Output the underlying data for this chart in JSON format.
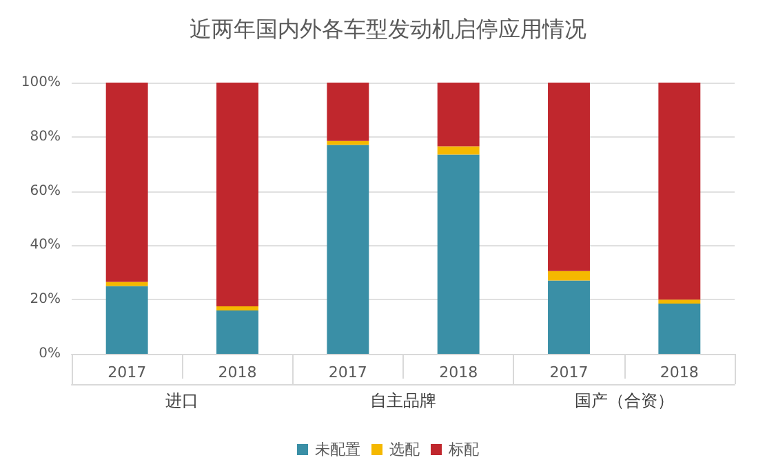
{
  "chart_data": {
    "type": "bar",
    "title": "近两年国内外各车型发动机启停应用情况",
    "stacked": true,
    "categories": [
      "2017",
      "2018",
      "2017",
      "2018",
      "2017",
      "2018"
    ],
    "annotations": [
      "进口",
      "自主品牌",
      "国产（合资）"
    ],
    "series": [
      {
        "name": "未配置",
        "color": "#3a8fa6",
        "values": [
          25,
          16,
          77,
          73.5,
          27,
          18.5
        ]
      },
      {
        "name": "选配",
        "color": "#f5b800",
        "values": [
          1.5,
          1.5,
          1.5,
          3,
          3.5,
          1.5
        ]
      },
      {
        "name": "标配",
        "color": "#c0272d",
        "values": [
          73.5,
          82.5,
          21.5,
          23.5,
          69.5,
          80
        ]
      }
    ],
    "ylim": [
      0,
      100
    ],
    "yticks": [
      {
        "value": 0,
        "label": "0%"
      },
      {
        "value": 20,
        "label": "20%"
      },
      {
        "value": 40,
        "label": "40%"
      },
      {
        "value": 60,
        "label": "60%"
      },
      {
        "value": 80,
        "label": "80%"
      },
      {
        "value": 100,
        "label": "100%"
      }
    ],
    "grid": "y",
    "legend": "bottom"
  }
}
